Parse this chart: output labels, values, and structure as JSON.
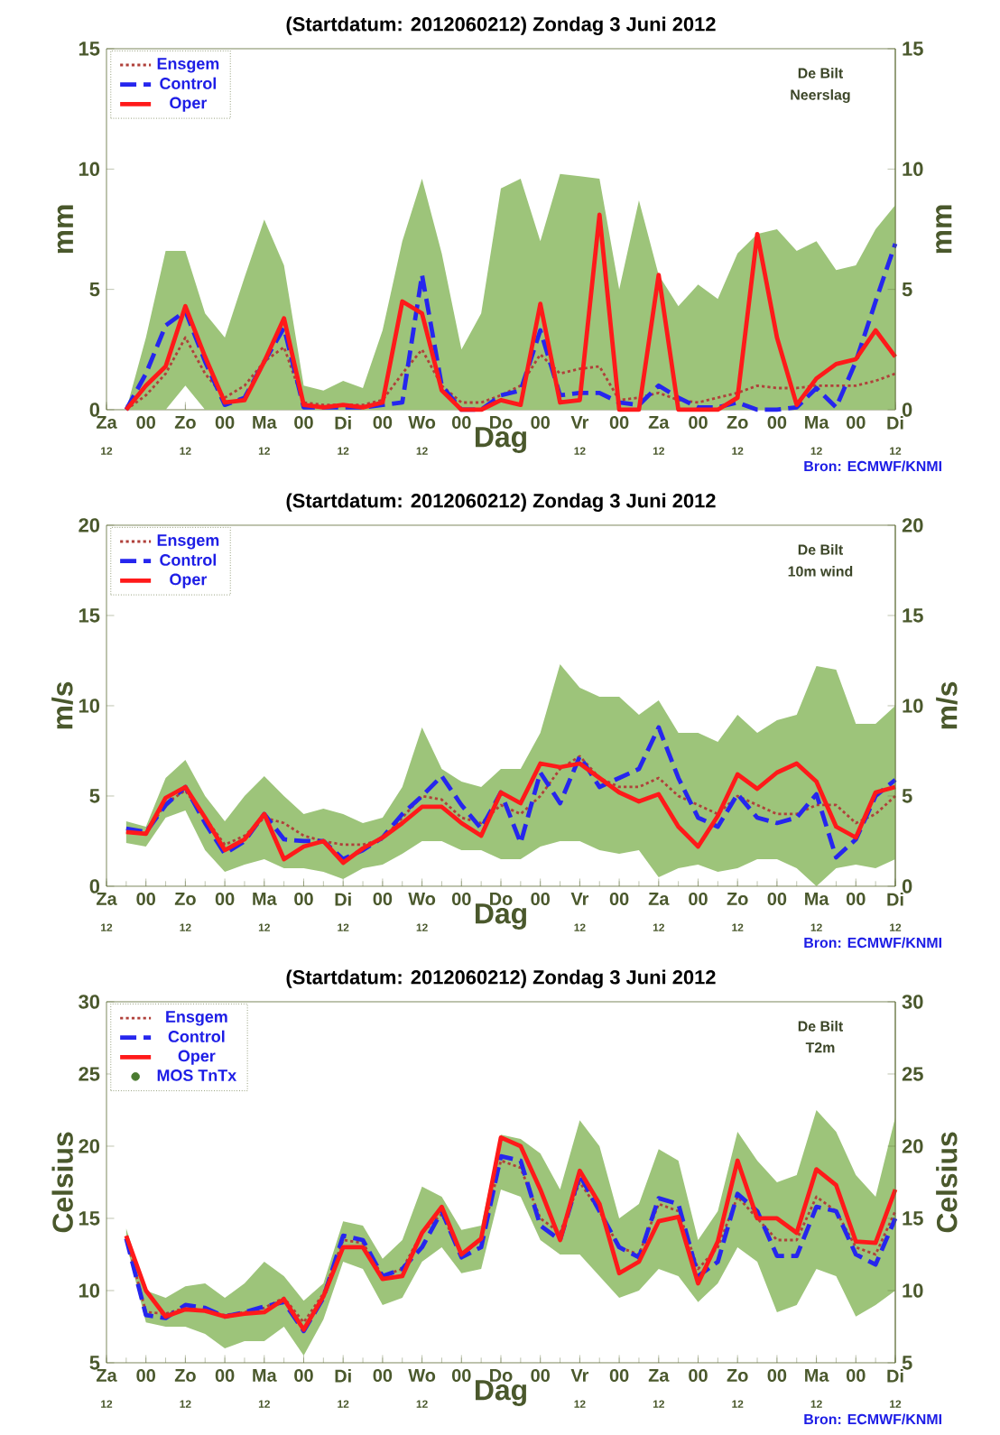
{
  "chart_data": [
    {
      "type": "line",
      "title": "(Startdatum: 2012060212)   Zondag    3 Juni     2012",
      "xlabel": "Dag",
      "ylabel": "mm",
      "y2label": "mm",
      "legend": "top left",
      "annotations": [
        "De Bilt",
        "Neerslag",
        "Bron: ECMWF/KNMI",
        "12",
        "12",
        "12",
        "12",
        "12",
        "12",
        "12",
        "12",
        "12",
        "12"
      ],
      "ylim": [
        0,
        15
      ],
      "yticks": [
        0,
        5,
        10,
        15
      ],
      "y2lim": [
        0,
        15
      ],
      "y2ticks": [
        0,
        5,
        10,
        15
      ],
      "categories": [
        "Za",
        null,
        "00",
        null,
        "Zo",
        null,
        "00",
        null,
        "Ma",
        null,
        "00",
        null,
        "Di",
        null,
        "00",
        null,
        "Wo",
        null,
        "00",
        null,
        "Do",
        null,
        "00",
        null,
        "Vr",
        null,
        "00",
        null,
        "Za",
        null,
        "00",
        null,
        "Zo",
        null,
        "00",
        null,
        "Ma",
        null,
        "00",
        null,
        "Di"
      ],
      "series": [
        {
          "name": "Ensgem",
          "color": "#b0403a",
          "line_style": "dotted",
          "values": [
            null,
            0,
            0.6,
            1.5,
            3.0,
            1.5,
            0.5,
            1.0,
            2.0,
            2.6,
            0.3,
            0.2,
            0.2,
            0.2,
            0.4,
            1.5,
            2.5,
            1.0,
            0.3,
            0.3,
            0.6,
            1.0,
            2.3,
            1.5,
            1.7,
            1.8,
            0.4,
            0.5,
            0.7,
            0.4,
            0.3,
            0.5,
            0.7,
            1.0,
            0.9,
            0.9,
            1.0,
            1.0,
            1.0,
            1.2,
            1.5
          ],
          "lower": [
            null,
            0,
            0,
            0,
            1.0,
            0,
            0,
            0,
            0,
            0,
            0,
            0,
            0,
            0,
            0,
            0,
            0,
            0,
            0,
            0,
            0,
            0,
            0,
            0,
            0,
            0,
            0,
            0,
            0,
            0,
            0,
            0,
            0,
            0,
            0,
            0,
            0,
            0,
            0,
            0,
            0
          ],
          "upper": [
            null,
            0,
            3,
            6.6,
            6.6,
            4,
            3,
            5.5,
            7.9,
            6,
            1,
            0.8,
            1.2,
            0.9,
            3.3,
            7,
            9.6,
            6.5,
            2.5,
            4,
            9.2,
            9.6,
            7,
            9.8,
            9.7,
            9.6,
            5,
            8.7,
            5.6,
            4.3,
            5.2,
            4.6,
            6.5,
            7.3,
            7.5,
            6.6,
            7,
            5.8,
            6,
            7.5,
            8.5
          ]
        },
        {
          "name": "Control",
          "color": "#2626ee",
          "line_style": "dashed",
          "values": [
            null,
            0,
            1.5,
            3.5,
            4.1,
            2.0,
            0.2,
            0.5,
            2.0,
            3.4,
            0.1,
            0.1,
            0.1,
            0.1,
            0.2,
            0.3,
            5.6,
            1.0,
            0,
            0,
            0.6,
            0.8,
            3.3,
            0.6,
            0.7,
            0.7,
            0.3,
            0.2,
            1.0,
            0.5,
            0.1,
            0.1,
            0.3,
            0,
            0,
            0.1,
            0.9,
            0.1,
            2.0,
            4.5,
            6.9
          ]
        },
        {
          "name": "Oper",
          "color": "#ff1a1a",
          "line_style": "solid",
          "values": [
            null,
            0,
            1.0,
            1.8,
            4.3,
            2.2,
            0.3,
            0.4,
            2.0,
            3.8,
            0.2,
            0.1,
            0.2,
            0.1,
            0.3,
            4.5,
            4.0,
            0.8,
            0,
            0,
            0.4,
            0.2,
            4.4,
            0.3,
            0.4,
            8.1,
            0,
            0,
            5.6,
            0,
            0,
            0,
            0.5,
            7.3,
            3.0,
            0.2,
            1.3,
            1.9,
            2.1,
            3.3,
            2.2
          ]
        }
      ]
    },
    {
      "type": "line",
      "title": "(Startdatum: 2012060212)   Zondag    3 Juni     2012",
      "xlabel": "Dag",
      "ylabel": "m/s",
      "y2label": "m/s",
      "legend": "top left",
      "annotations": [
        "De Bilt",
        "10m wind",
        "Bron: ECMWF/KNMI",
        "12",
        "12",
        "12",
        "12",
        "12",
        "12",
        "12",
        "12",
        "12",
        "12"
      ],
      "ylim": [
        0,
        20
      ],
      "yticks": [
        0,
        5,
        10,
        15,
        20
      ],
      "y2lim": [
        0,
        20
      ],
      "y2ticks": [
        0,
        5,
        10,
        15,
        20
      ],
      "categories": [
        "Za",
        null,
        "00",
        null,
        "Zo",
        null,
        "00",
        null,
        "Ma",
        null,
        "00",
        null,
        "Di",
        null,
        "00",
        null,
        "Wo",
        null,
        "00",
        null,
        "Do",
        null,
        "00",
        null,
        "Vr",
        null,
        "00",
        null,
        "Za",
        null,
        "00",
        null,
        "Zo",
        null,
        "00",
        null,
        "Ma",
        null,
        "00",
        null,
        "Di"
      ],
      "series": [
        {
          "name": "Ensgem",
          "color": "#b0403a",
          "line_style": "dotted",
          "values": [
            null,
            3.0,
            2.9,
            4.6,
            5.3,
            3.8,
            2.3,
            2.8,
            3.8,
            3.5,
            2.8,
            2.5,
            2.3,
            2.3,
            2.6,
            3.8,
            5.0,
            4.8,
            3.8,
            3.5,
            4.5,
            4.0,
            5.0,
            6.5,
            7.2,
            6.0,
            5.5,
            5.5,
            6.0,
            5.0,
            4.5,
            4.0,
            5.0,
            4.5,
            4.0,
            4.0,
            4.5,
            4.5,
            3.5,
            4.0,
            5.0
          ],
          "lower": [
            null,
            2.4,
            2.2,
            3.8,
            4.2,
            2.0,
            0.8,
            1.2,
            1.5,
            1.0,
            1.0,
            0.8,
            0.4,
            1.0,
            1.2,
            1.8,
            2.5,
            2.5,
            2.0,
            2.0,
            1.5,
            1.5,
            2.2,
            2.5,
            2.5,
            2.0,
            1.8,
            2.0,
            0.5,
            1.0,
            1.2,
            0.8,
            1.0,
            1.5,
            1.5,
            1.0,
            0.0,
            1.0,
            1.2,
            1.0,
            1.5
          ],
          "upper": [
            null,
            3.6,
            3.3,
            6.0,
            7.0,
            5.0,
            3.6,
            5.0,
            6.1,
            5.0,
            4.0,
            4.3,
            4.0,
            3.5,
            3.8,
            5.5,
            8.8,
            6.5,
            5.8,
            5.5,
            6.5,
            6.5,
            8.5,
            12.3,
            11.0,
            10.5,
            10.5,
            9.5,
            10.3,
            8.5,
            8.5,
            8.0,
            9.5,
            8.5,
            9.2,
            9.5,
            12.2,
            12.0,
            9.0,
            9.0,
            10.0
          ]
        },
        {
          "name": "Control",
          "color": "#2626ee",
          "line_style": "dashed",
          "values": [
            null,
            3.2,
            3.0,
            4.5,
            5.5,
            3.5,
            1.8,
            2.5,
            4.0,
            2.6,
            2.5,
            2.5,
            1.5,
            2.0,
            2.7,
            4.0,
            5.0,
            6.1,
            4.5,
            3.2,
            5.2,
            2.4,
            6.3,
            4.6,
            7.2,
            5.5,
            6.0,
            6.5,
            8.8,
            6.0,
            3.8,
            3.3,
            5.1,
            3.8,
            3.5,
            3.8,
            5.1,
            1.6,
            2.6,
            5.0,
            5.9
          ]
        },
        {
          "name": "Oper",
          "color": "#ff1a1a",
          "line_style": "solid",
          "values": [
            null,
            3.0,
            2.9,
            4.9,
            5.5,
            3.8,
            2.0,
            2.6,
            4.0,
            1.5,
            2.2,
            2.5,
            1.3,
            2.1,
            2.7,
            3.5,
            4.4,
            4.4,
            3.5,
            2.8,
            5.2,
            4.6,
            6.8,
            6.6,
            6.8,
            6.0,
            5.2,
            4.7,
            5.1,
            3.3,
            2.2,
            3.9,
            6.2,
            5.4,
            6.3,
            6.8,
            5.8,
            3.3,
            2.7,
            5.2,
            5.5
          ]
        }
      ]
    },
    {
      "type": "line",
      "title": "(Startdatum: 2012060212)   Zondag    3 Juni     2012",
      "xlabel": "Dag",
      "ylabel": "Celsius",
      "y2label": "Celsius",
      "legend": "top left",
      "annotations": [
        "De Bilt",
        "T2m",
        "Bron: ECMWF/KNMI",
        "12",
        "12",
        "12",
        "12",
        "12",
        "12",
        "12",
        "12",
        "12",
        "12"
      ],
      "ylim": [
        5,
        30
      ],
      "yticks": [
        5,
        10,
        15,
        20,
        25,
        30
      ],
      "y2lim": [
        5,
        30
      ],
      "y2ticks": [
        5,
        10,
        15,
        20,
        25,
        30
      ],
      "categories": [
        "Za",
        null,
        "00",
        null,
        "Zo",
        null,
        "00",
        null,
        "Ma",
        null,
        "00",
        null,
        "Di",
        null,
        "00",
        null,
        "Wo",
        null,
        "00",
        null,
        "Do",
        null,
        "00",
        null,
        "Vr",
        null,
        "00",
        null,
        "Za",
        null,
        "00",
        null,
        "Zo",
        null,
        "00",
        null,
        "Ma",
        null,
        "00",
        null,
        "Di"
      ],
      "series": [
        {
          "name": "Ensgem",
          "color": "#b0403a",
          "line_style": "dotted",
          "values": [
            null,
            13.7,
            8.5,
            8.4,
            8.8,
            8.6,
            8.3,
            8.5,
            8.8,
            9.5,
            7.8,
            9.8,
            13.5,
            13.3,
            11.0,
            11.5,
            14.0,
            15.3,
            12.5,
            13.5,
            19.0,
            18.5,
            15.0,
            14.0,
            17.5,
            15.5,
            13.0,
            12.5,
            16.0,
            15.5,
            11.5,
            13.0,
            16.5,
            15.0,
            13.5,
            13.5,
            16.5,
            15.5,
            13.0,
            12.5,
            15.5
          ],
          "lower": [
            null,
            13.3,
            7.8,
            7.5,
            7.5,
            7.0,
            6.0,
            6.5,
            6.5,
            7.5,
            5.5,
            8.0,
            12.0,
            11.5,
            9.0,
            9.5,
            12.0,
            13.0,
            11.2,
            11.5,
            17.0,
            16.5,
            13.5,
            12.5,
            12.5,
            11.0,
            9.5,
            10.0,
            11.5,
            11.0,
            9.2,
            10.5,
            13.0,
            12.0,
            8.5,
            9.0,
            11.5,
            11.0,
            8.2,
            9.0,
            10.0
          ],
          "upper": [
            null,
            14.3,
            10.0,
            9.5,
            10.3,
            10.5,
            9.5,
            10.5,
            12.0,
            11.0,
            9.3,
            10.5,
            14.8,
            14.5,
            12.2,
            13.5,
            17.2,
            16.5,
            14.2,
            14.5,
            20.8,
            20.5,
            19.5,
            17.0,
            21.8,
            20.0,
            15.0,
            16.0,
            19.8,
            19.0,
            13.5,
            15.5,
            21.0,
            19.0,
            17.5,
            18.0,
            22.5,
            21.0,
            18.0,
            16.5,
            22.0
          ]
        },
        {
          "name": "Control",
          "color": "#2626ee",
          "line_style": "dashed",
          "values": [
            null,
            13.6,
            8.3,
            8.1,
            9.0,
            8.8,
            8.2,
            8.5,
            8.9,
            9.2,
            7.2,
            9.5,
            13.8,
            13.5,
            11.0,
            11.5,
            13.0,
            15.5,
            12.3,
            13.0,
            19.3,
            19.0,
            14.5,
            13.5,
            18.0,
            15.5,
            13.0,
            12.3,
            16.4,
            16.0,
            11.0,
            12.0,
            16.7,
            15.5,
            12.4,
            12.4,
            15.8,
            15.5,
            12.5,
            11.8,
            15.0
          ]
        },
        {
          "name": "Oper",
          "color": "#ff1a1a",
          "line_style": "solid",
          "values": [
            null,
            13.8,
            10.0,
            8.2,
            8.7,
            8.6,
            8.2,
            8.4,
            8.5,
            9.4,
            7.3,
            9.6,
            13.0,
            13.0,
            10.8,
            11.0,
            14.0,
            15.8,
            12.5,
            13.6,
            20.6,
            20.0,
            17.0,
            13.5,
            18.3,
            16.0,
            11.2,
            12.0,
            14.8,
            15.1,
            10.5,
            13.4,
            19.0,
            15.0,
            15.0,
            14.0,
            18.4,
            17.3,
            13.4,
            13.3,
            17.0
          ]
        },
        {
          "name": "MOS TnTx",
          "color": "#4a7a30",
          "type": "scatter",
          "marker": "circle",
          "values": [
            null,
            null,
            null,
            null,
            null,
            null,
            null,
            null,
            null,
            null,
            null,
            null,
            null,
            null,
            null,
            null,
            null,
            null,
            null,
            null,
            null,
            null,
            null,
            null,
            null,
            null,
            null,
            null,
            null,
            null,
            null,
            null,
            null,
            null,
            null,
            null,
            null,
            null,
            null,
            null,
            null
          ]
        }
      ]
    }
  ]
}
